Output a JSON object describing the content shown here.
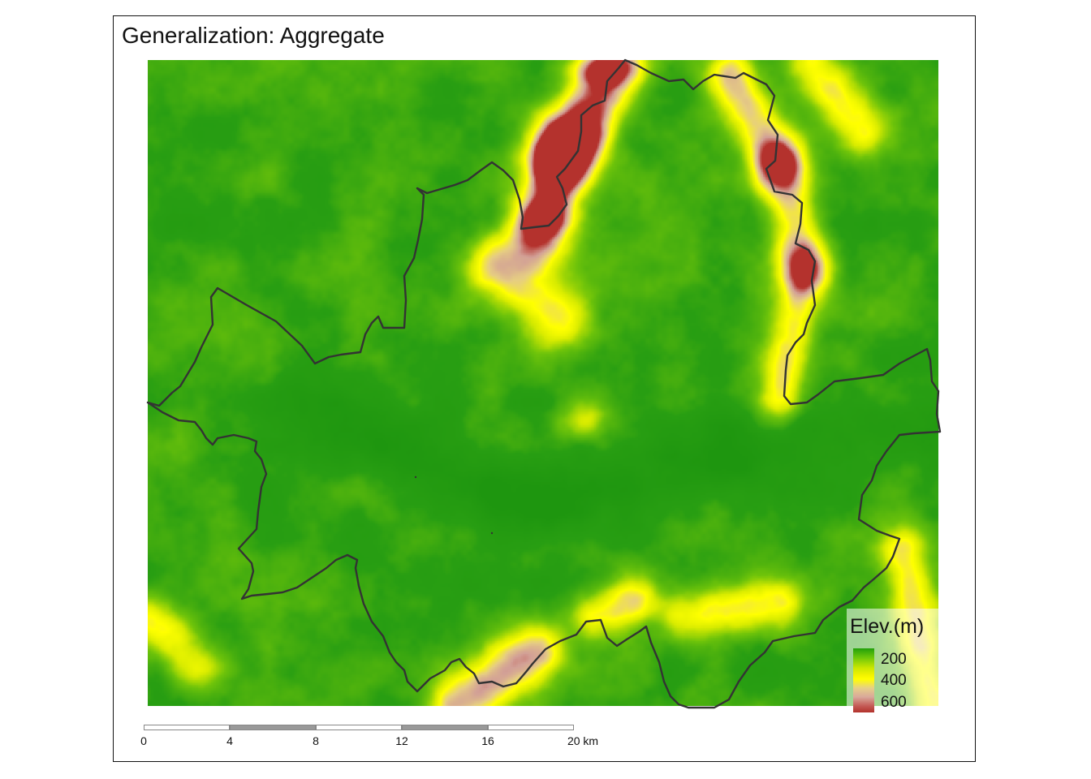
{
  "title": "Generalization: Aggregate",
  "legend": {
    "title": "Elev.(m)",
    "entries": [
      {
        "label": "200",
        "color": "#ffff00"
      },
      {
        "label": "400",
        "color": "#e7c79a"
      },
      {
        "label": "600",
        "color": "#b2322c"
      }
    ]
  },
  "scale_bar": {
    "ticks": [
      "0",
      "4",
      "8",
      "12",
      "16",
      "20 km"
    ],
    "segment_colors": [
      "#ffffff",
      "#999999",
      "#ffffff",
      "#999999",
      "#ffffff"
    ]
  },
  "colors": {
    "low": "#1e9a10",
    "mid": "#ffff00",
    "high": "#b2322c",
    "boundary": "#333333"
  }
}
